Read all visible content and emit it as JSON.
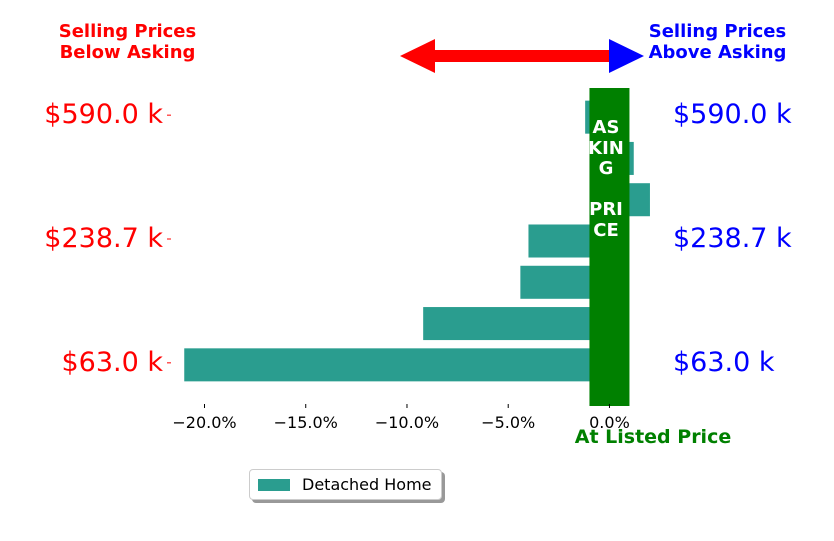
{
  "chart_data": {
    "type": "bar",
    "orientation": "horizontal",
    "title": "",
    "series": [
      {
        "name": "Detached Home",
        "color": "#2a9d8f",
        "values": [
          -21.0,
          -9.2,
          -4.4,
          -4.0,
          2.0,
          1.2,
          -1.2
        ]
      }
    ],
    "bar_count": 7,
    "xlim": [
      -22.0,
      2.2
    ],
    "xticks": [
      -20.0,
      -15.0,
      -10.0,
      -5.0,
      0.0
    ],
    "xtick_labels": [
      "−20.0%",
      "−15.0%",
      "−10.0%",
      "−5.0%",
      "0.0%"
    ],
    "ytick_labels": [
      "$63.0 k",
      "$238.7 k",
      "$590.0 k"
    ],
    "grid": false,
    "legend_position": "bottom-center"
  },
  "annotations": {
    "left_header": "Selling Prices\nBelow Asking",
    "right_header": "Selling Prices\nAbove Asking",
    "asking_price_band": "ASKING\n\nPRICE",
    "at_listed_price": "At Listed Price",
    "left_color": "#ff0000",
    "right_color": "#0000ff",
    "band_color": "#008000"
  }
}
